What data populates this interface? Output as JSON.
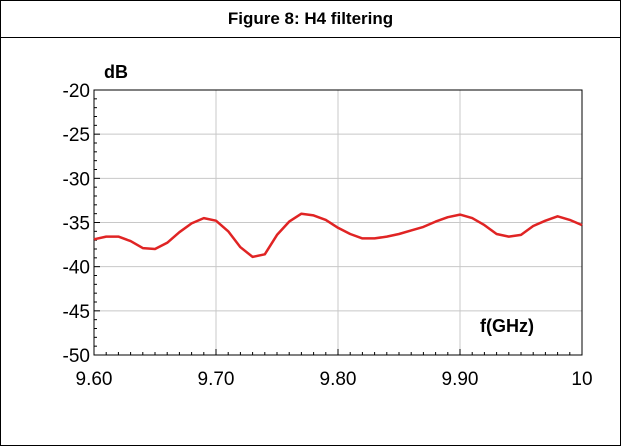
{
  "figure": {
    "title": "Figure 8: H4 filtering"
  },
  "chart_data": {
    "type": "line",
    "title": "Figure 8: H4 filtering",
    "xlabel": "f(GHz)",
    "ylabel": "dB",
    "xlim": [
      9.6,
      10.0
    ],
    "ylim": [
      -50,
      -20
    ],
    "x_ticks": [
      9.6,
      9.7,
      9.8,
      9.9,
      10.0
    ],
    "x_tick_labels": [
      "9.60",
      "9.70",
      "9.80",
      "9.90",
      "10"
    ],
    "y_ticks": [
      -20,
      -25,
      -30,
      -35,
      -40,
      -45,
      -50
    ],
    "y_tick_labels": [
      "-20",
      "-25",
      "-30",
      "-35",
      "-40",
      "-45",
      "-50"
    ],
    "grid": true,
    "legend": "none",
    "series": [
      {
        "color": "#e02424",
        "x": [
          9.6,
          9.61,
          9.62,
          9.63,
          9.64,
          9.65,
          9.66,
          9.67,
          9.68,
          9.69,
          9.7,
          9.71,
          9.72,
          9.73,
          9.74,
          9.75,
          9.76,
          9.77,
          9.78,
          9.79,
          9.8,
          9.81,
          9.82,
          9.83,
          9.84,
          9.85,
          9.86,
          9.87,
          9.88,
          9.89,
          9.9,
          9.91,
          9.92,
          9.93,
          9.94,
          9.95,
          9.96,
          9.97,
          9.98,
          9.99,
          10.0
        ],
        "y": [
          -36.9,
          -36.6,
          -36.6,
          -37.1,
          -37.9,
          -38.0,
          -37.3,
          -36.1,
          -35.1,
          -34.5,
          -34.8,
          -36.0,
          -37.8,
          -38.9,
          -38.6,
          -36.4,
          -34.9,
          -34.0,
          -34.2,
          -34.7,
          -35.6,
          -36.3,
          -36.8,
          -36.8,
          -36.6,
          -36.3,
          -35.9,
          -35.5,
          -34.9,
          -34.4,
          -34.1,
          -34.5,
          -35.3,
          -36.3,
          -36.6,
          -36.4,
          -35.4,
          -34.8,
          -34.3,
          -34.7,
          -35.3
        ]
      }
    ]
  }
}
